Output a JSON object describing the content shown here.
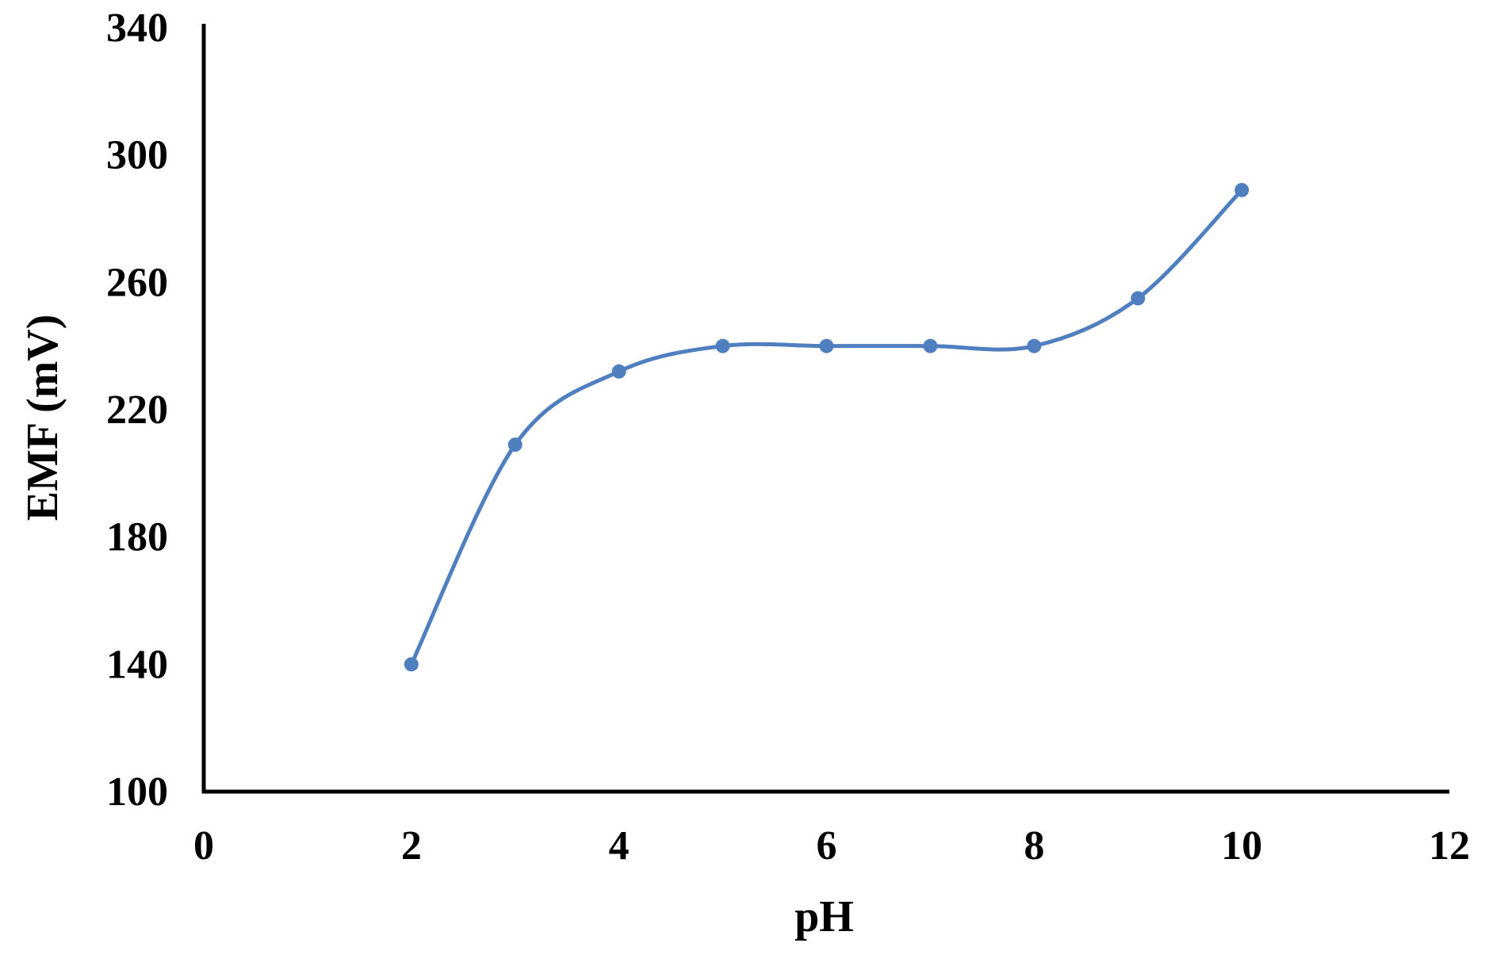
{
  "chart_data": {
    "type": "line",
    "title": "",
    "xlabel": "pH",
    "ylabel": "EMF (mV)",
    "xlim": [
      0,
      12
    ],
    "ylim": [
      100,
      340
    ],
    "x_ticks": [
      0,
      2,
      4,
      6,
      8,
      10,
      12
    ],
    "y_ticks": [
      100,
      140,
      180,
      220,
      260,
      300,
      340
    ],
    "grid": false,
    "legend": "none",
    "smooth": true,
    "series": [
      {
        "color": "#4f7fbf",
        "points": [
          {
            "x": 2,
            "y": 140
          },
          {
            "x": 3,
            "y": 209
          },
          {
            "x": 4,
            "y": 232
          },
          {
            "x": 5,
            "y": 240
          },
          {
            "x": 6,
            "y": 240
          },
          {
            "x": 7,
            "y": 240
          },
          {
            "x": 8,
            "y": 240
          },
          {
            "x": 9,
            "y": 255
          },
          {
            "x": 10,
            "y": 289
          }
        ]
      }
    ]
  }
}
